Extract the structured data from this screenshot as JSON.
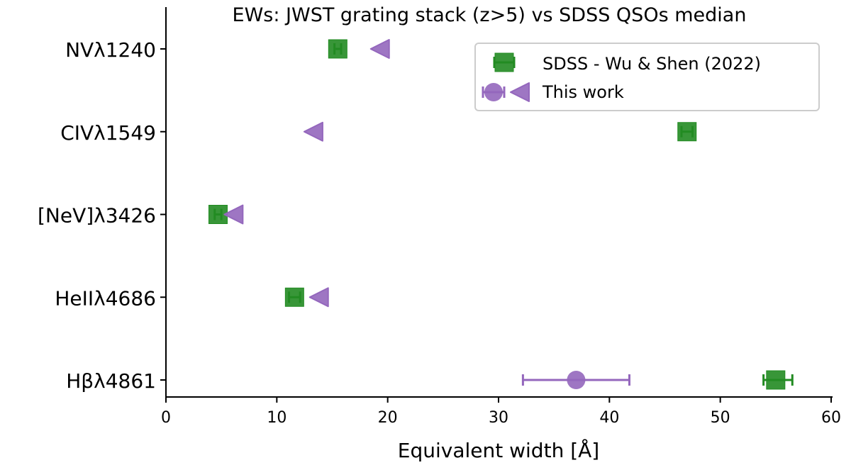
{
  "chart_data": {
    "type": "scatter",
    "title": "EWs: JWST grating stack (z>5) vs SDSS QSOs median",
    "xlabel": "Equivalent width [Å]",
    "ylabel": "",
    "xlim": [
      0,
      60
    ],
    "xticks": [
      "0",
      "10",
      "20",
      "30",
      "40",
      "50",
      "60"
    ],
    "categories": [
      "NVλ1240",
      "CIVλ1549",
      "[NeV]λ3426",
      "HeIIλ4686",
      "Hβλ4861"
    ],
    "grid": false,
    "legend_position": "top-right",
    "series": [
      {
        "name": "SDSS - Wu & Shen (2022)",
        "color": "#228B22",
        "marker": "square",
        "points": [
          {
            "category": "NVλ1240",
            "value": 15.5,
            "err_low": 0.3,
            "err_high": 0.3
          },
          {
            "category": "CIVλ1549",
            "value": 47.0,
            "err_low": 0.5,
            "err_high": 0.5
          },
          {
            "category": "[NeV]λ3426",
            "value": 4.7,
            "err_low": 0.3,
            "err_high": 0.3
          },
          {
            "category": "HeIIλ4686",
            "value": 11.6,
            "err_low": 0.5,
            "err_high": 0.5
          },
          {
            "category": "Hβλ4861",
            "value": 55.0,
            "err_low": 1.1,
            "err_high": 1.5
          }
        ]
      },
      {
        "name": "This work",
        "color": "#9467bd",
        "points": [
          {
            "category": "NVλ1240",
            "value": 19.3,
            "upper_limit": true
          },
          {
            "category": "CIVλ1549",
            "value": 13.3,
            "upper_limit": true
          },
          {
            "category": "[NeV]λ3426",
            "value": 6.1,
            "upper_limit": true
          },
          {
            "category": "HeIIλ4686",
            "value": 13.8,
            "upper_limit": true
          },
          {
            "category": "Hβλ4861",
            "value": 37.0,
            "err_low": 4.8,
            "err_high": 4.8,
            "upper_limit": false
          }
        ]
      }
    ]
  }
}
